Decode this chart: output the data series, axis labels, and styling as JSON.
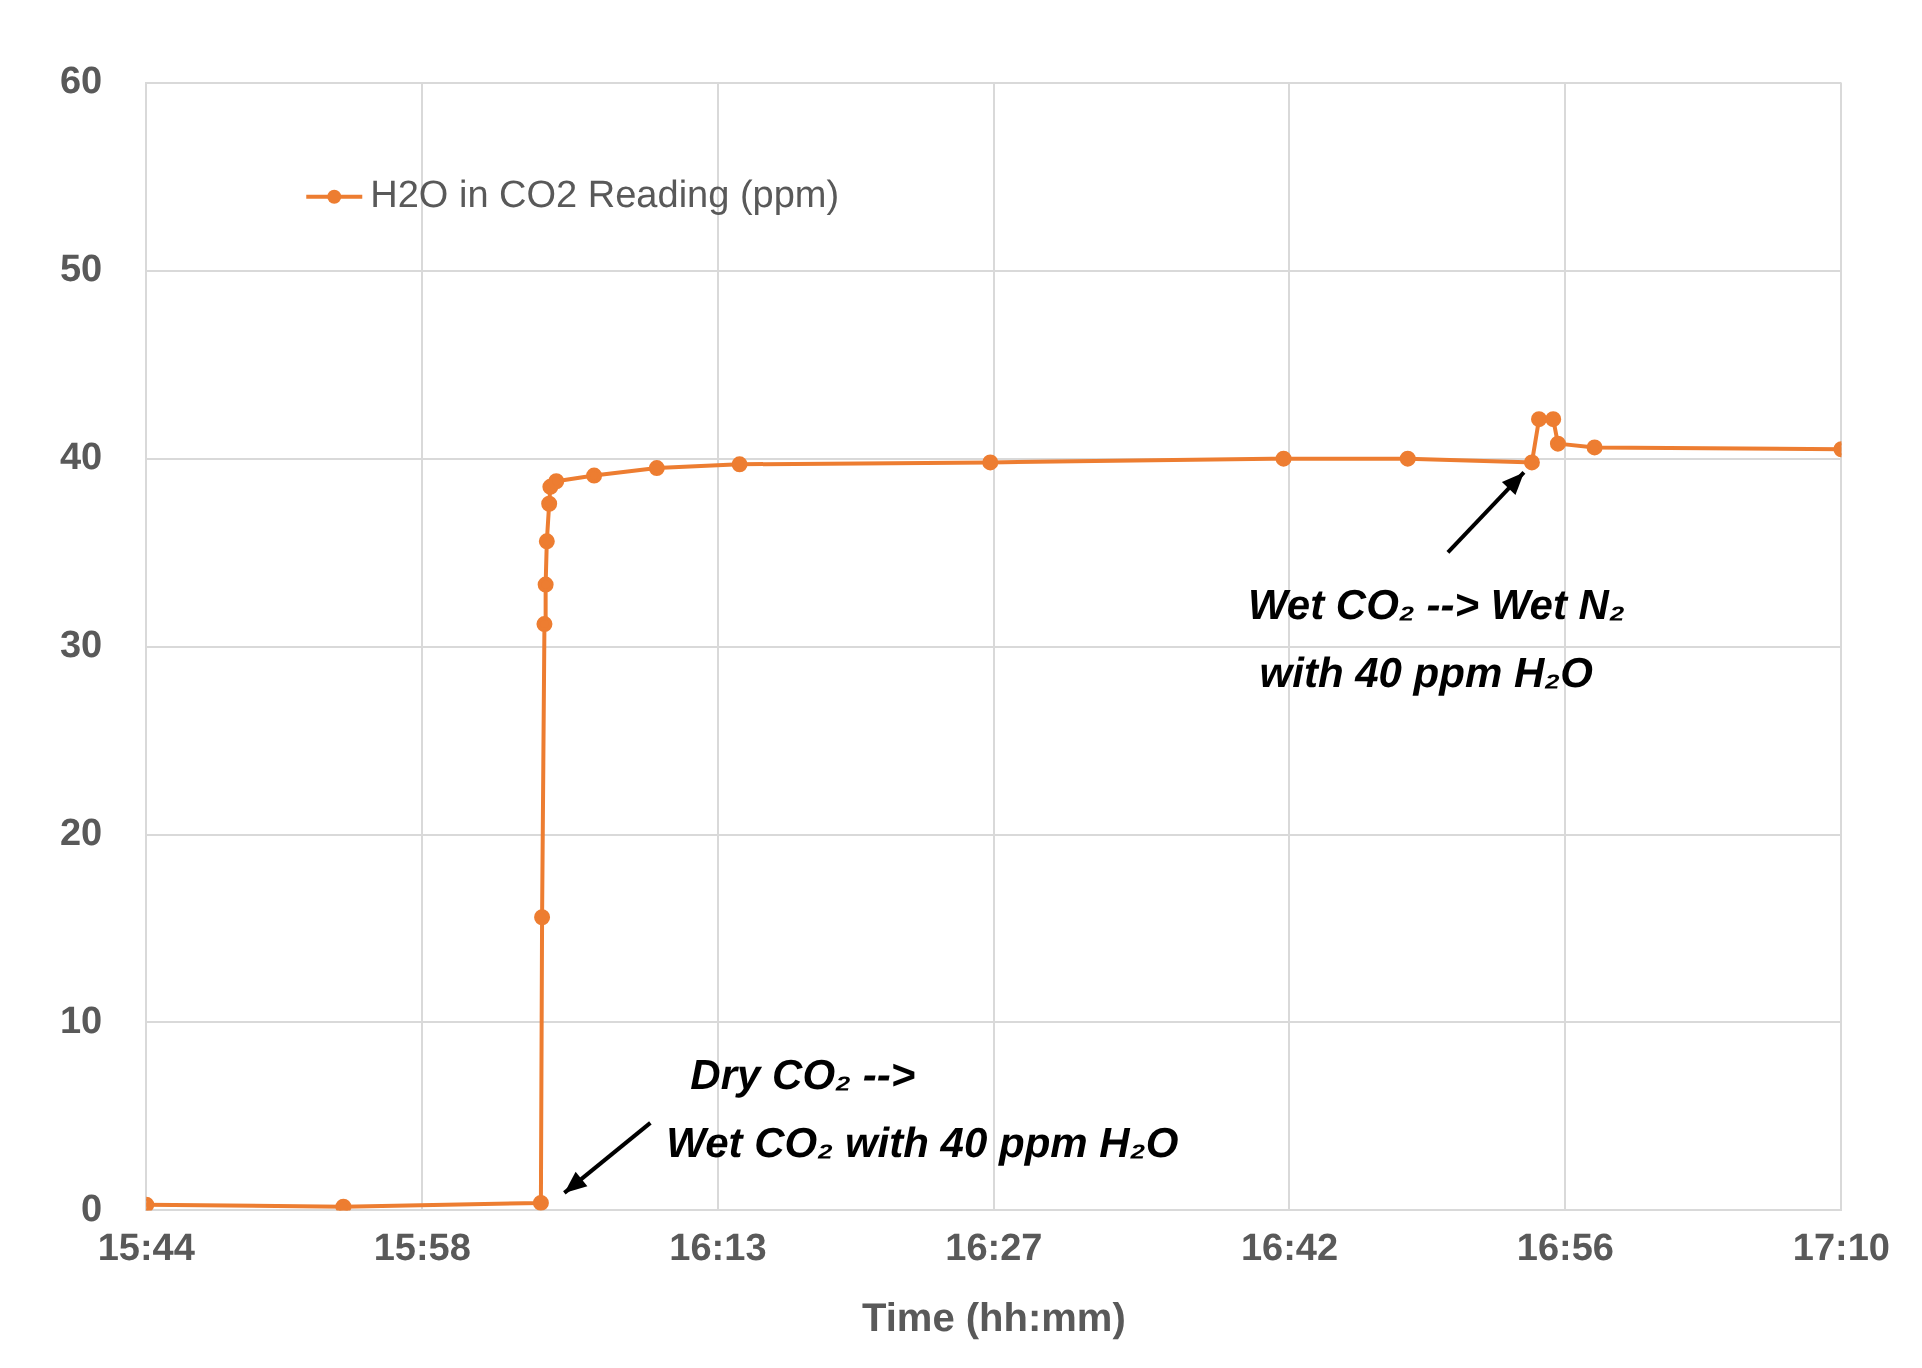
{
  "chart_data": {
    "type": "line",
    "xlabel": "Time (hh:mm)",
    "x": [
      15.7333,
      15.9,
      16.067,
      16.068,
      16.07,
      16.071,
      16.072,
      16.074,
      16.075,
      16.08,
      16.112,
      16.165,
      16.235,
      16.447,
      16.695,
      16.8,
      16.905,
      16.911,
      16.923,
      16.927,
      16.958,
      17.1667
    ],
    "series": [
      {
        "name": "H2O in CO2 Reading (ppm)",
        "color": "#ed7d31",
        "values": [
          0.3,
          0.2,
          0.4,
          15.6,
          31.2,
          33.3,
          35.6,
          37.6,
          38.5,
          38.8,
          39.1,
          39.5,
          39.7,
          39.8,
          40.0,
          40.0,
          39.8,
          42.1,
          42.1,
          40.8,
          40.6,
          40.5
        ]
      }
    ],
    "xlim": [
      15.7333,
      17.1667
    ],
    "xticks": [
      {
        "value": 15.7333,
        "label": "15:44"
      },
      {
        "value": 15.9667,
        "label": "15:58"
      },
      {
        "value": 16.2167,
        "label": "16:13"
      },
      {
        "value": 16.45,
        "label": "16:27"
      },
      {
        "value": 16.7,
        "label": "16:42"
      },
      {
        "value": 16.9333,
        "label": "16:56"
      },
      {
        "value": 17.1667,
        "label": "17:10"
      }
    ],
    "ylim": [
      0,
      60
    ],
    "yticks": [
      0,
      10,
      20,
      30,
      40,
      50,
      60
    ],
    "grid": true,
    "legend": "top left",
    "marker": "circle",
    "line_style": "solid",
    "annotations": [
      {
        "text": "Dry CO₂ -->\nWet CO₂ with 40 ppm H₂O",
        "x": 16.075,
        "y": 0.4
      },
      {
        "text": "Wet CO₂ --> Wet N₂\n with 40 ppm H₂O",
        "x": 16.905,
        "y": 39.8
      }
    ]
  }
}
